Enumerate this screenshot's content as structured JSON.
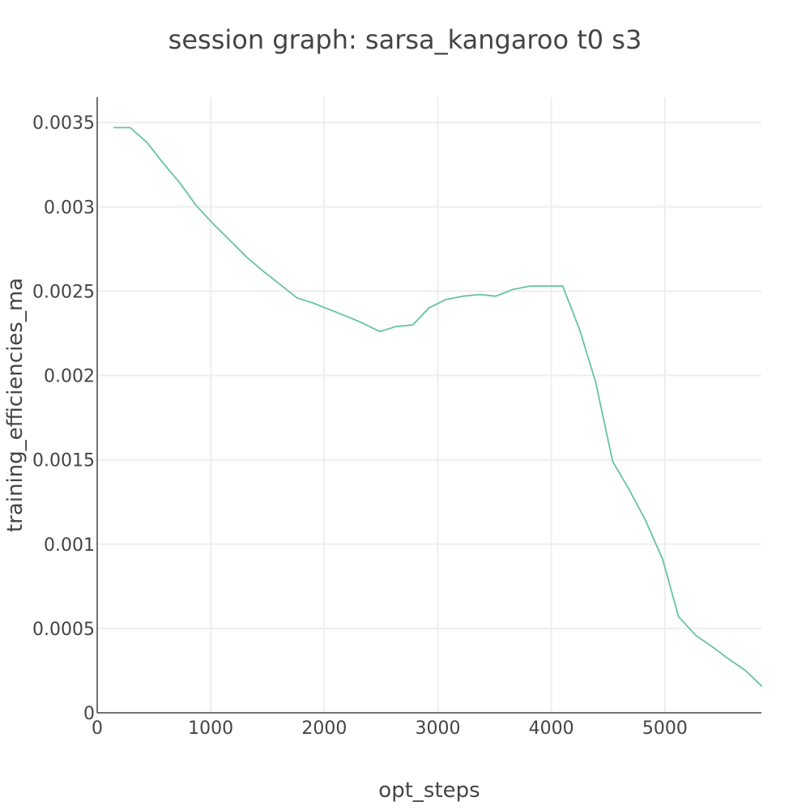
{
  "chart_data": {
    "type": "line",
    "title": "session graph: sarsa_kangaroo t0 s3",
    "xlabel": "opt_steps",
    "ylabel": "training_efficiencies_ma",
    "xlim": [
      0,
      5850
    ],
    "ylim": [
      0,
      0.00365
    ],
    "x_ticks": [
      {
        "value": 0,
        "label": "0"
      },
      {
        "value": 1000,
        "label": "1000"
      },
      {
        "value": 2000,
        "label": "2000"
      },
      {
        "value": 3000,
        "label": "3000"
      },
      {
        "value": 4000,
        "label": "4000"
      },
      {
        "value": 5000,
        "label": "5000"
      }
    ],
    "y_ticks": [
      {
        "value": 0,
        "label": "0"
      },
      {
        "value": 0.0005,
        "label": "0.0005"
      },
      {
        "value": 0.001,
        "label": "0.001"
      },
      {
        "value": 0.0015,
        "label": "0.0015"
      },
      {
        "value": 0.002,
        "label": "0.002"
      },
      {
        "value": 0.0025,
        "label": "0.0025"
      },
      {
        "value": 0.003,
        "label": "0.003"
      },
      {
        "value": 0.0035,
        "label": "0.0035"
      }
    ],
    "grid": true,
    "legend": "none",
    "series": [
      {
        "color": "#66c2a5",
        "x": [
          150,
          290,
          440,
          580,
          730,
          870,
          1020,
          1170,
          1320,
          1460,
          1610,
          1760,
          1900,
          2050,
          2200,
          2340,
          2490,
          2630,
          2780,
          2920,
          3070,
          3220,
          3370,
          3510,
          3660,
          3810,
          3950,
          4100,
          4250,
          4390,
          4540,
          4680,
          4830,
          4980,
          5120,
          5270,
          5420,
          5560,
          5710,
          5850
        ],
        "y": [
          0.00347,
          0.00347,
          0.00338,
          0.00326,
          0.00314,
          0.00301,
          0.0029,
          0.0028,
          0.0027,
          0.00262,
          0.00254,
          0.00246,
          0.00243,
          0.00239,
          0.00235,
          0.00231,
          0.00226,
          0.00229,
          0.0023,
          0.0024,
          0.00245,
          0.00247,
          0.00248,
          0.00247,
          0.00251,
          0.00253,
          0.00253,
          0.00253,
          0.00227,
          0.00196,
          0.00149,
          0.00133,
          0.00114,
          0.00091,
          0.00057,
          0.00046,
          0.00039,
          0.00032,
          0.00025,
          0.00016
        ]
      }
    ]
  }
}
